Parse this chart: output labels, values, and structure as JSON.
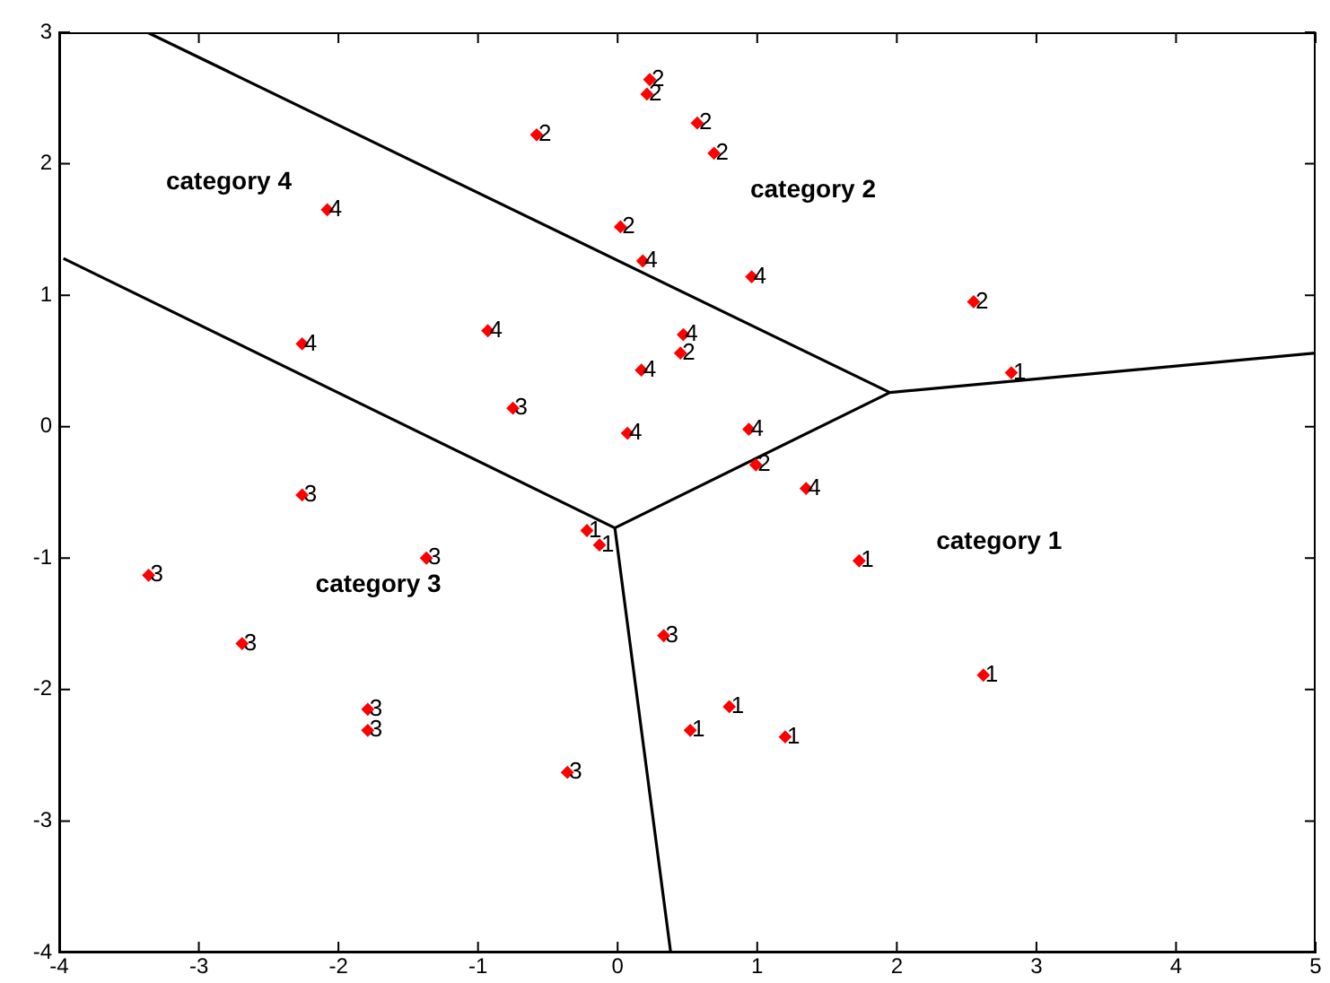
{
  "chart_data": {
    "type": "scatter",
    "marker": "diamond",
    "legend": false,
    "grid": false,
    "xlim": [
      -4,
      5
    ],
    "xticks": [
      -4,
      -3,
      -2,
      -1,
      0,
      1,
      2,
      3,
      4,
      5
    ],
    "ylim": [
      -4,
      3
    ],
    "yticks": [
      -4,
      -3,
      -2,
      -1,
      0,
      1,
      2,
      3
    ],
    "series": [
      {
        "name": "1",
        "color": "#ff0000",
        "x": [
          2.82,
          -0.22,
          -0.13,
          1.73,
          2.62,
          0.8,
          0.52,
          1.2
        ],
        "values": [
          0.41,
          -0.79,
          -0.9,
          -1.02,
          -1.89,
          -2.13,
          -2.31,
          -2.36
        ]
      },
      {
        "name": "2",
        "color": "#ff0000",
        "x": [
          0.23,
          0.21,
          -0.58,
          0.57,
          0.69,
          0.02,
          2.55,
          0.45,
          0.99
        ],
        "values": [
          2.64,
          2.53,
          2.22,
          2.31,
          2.08,
          1.52,
          0.95,
          0.56,
          -0.29
        ]
      },
      {
        "name": "3",
        "color": "#ff0000",
        "x": [
          -0.75,
          -2.26,
          -3.36,
          -1.37,
          -2.69,
          -1.79,
          -1.79,
          -0.36,
          0.33
        ],
        "values": [
          0.14,
          -0.52,
          -1.13,
          -1.0,
          -1.65,
          -2.15,
          -2.31,
          -2.63,
          -1.59
        ]
      },
      {
        "name": "4",
        "color": "#ff0000",
        "x": [
          0.18,
          0.96,
          0.47,
          0.17,
          0.07,
          0.94,
          1.35,
          -2.08,
          -2.26,
          -0.93
        ],
        "values": [
          1.26,
          1.14,
          0.7,
          0.43,
          -0.05,
          -0.02,
          -0.47,
          1.65,
          0.63,
          0.73
        ]
      },
      {
        "type": "line",
        "color": "#000000",
        "marker": "none",
        "x": [
          -3.37,
          1.95,
          5,
          null,
          -3.97,
          -0.02,
          1.95,
          null,
          -0.02,
          0.38
        ],
        "values": [
          3,
          0.26,
          0.56,
          null,
          1.28,
          -0.77,
          0.26,
          null,
          -0.77,
          -4
        ]
      }
    ],
    "annotations": [
      "category 1",
      "category 2",
      "category 3",
      "category 4"
    ]
  }
}
